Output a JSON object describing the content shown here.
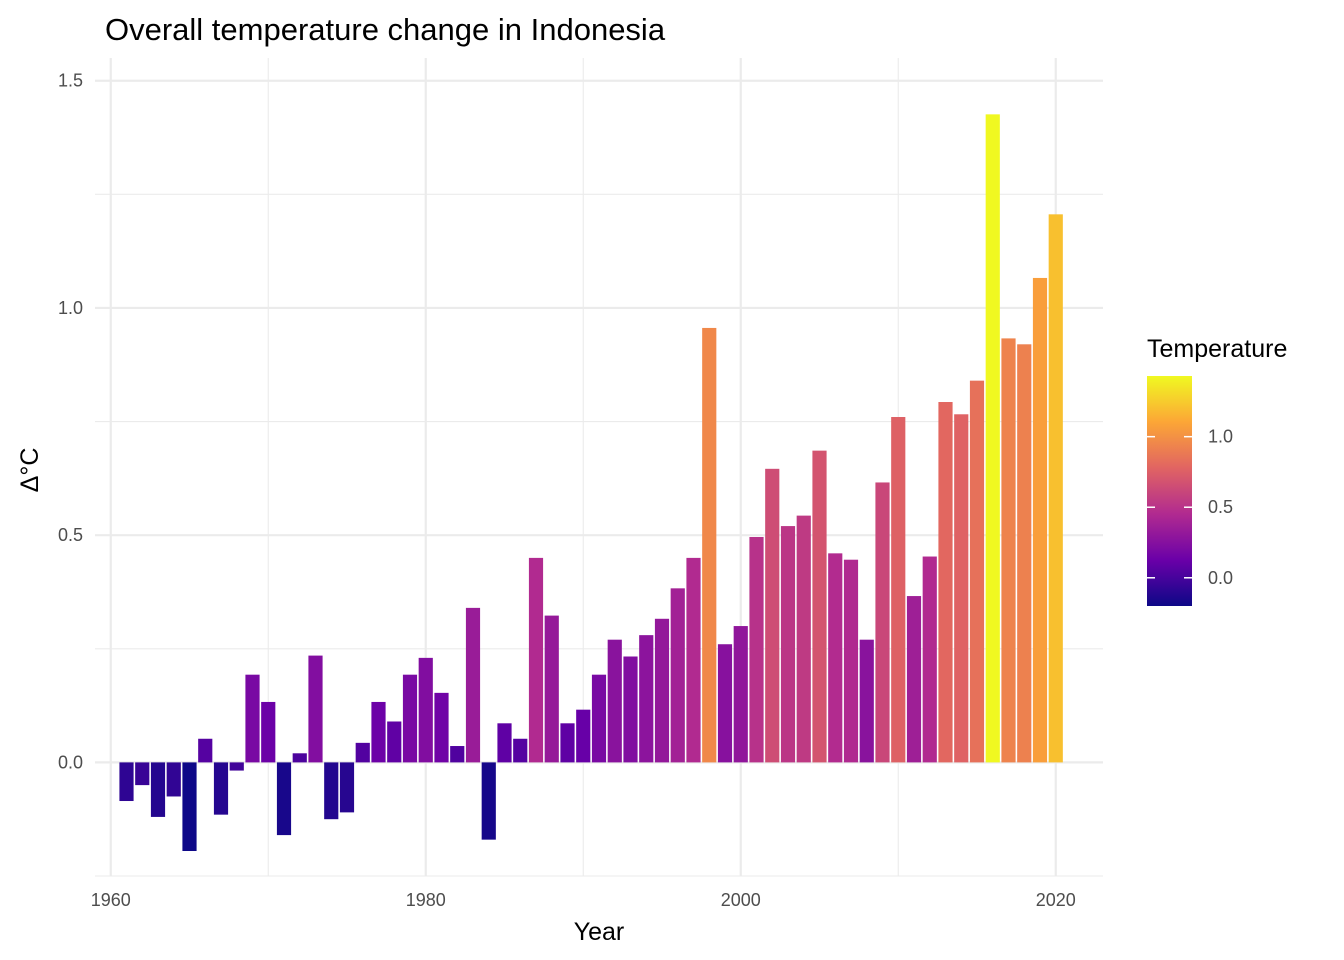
{
  "chart_data": {
    "type": "bar",
    "title": "Overall temperature change in Indonesia",
    "xlabel": "Year",
    "ylabel": "Δ°C",
    "xlim": [
      1959,
      2023
    ],
    "ylim": [
      -0.25,
      1.55
    ],
    "x_ticks": [
      "1960",
      "1980",
      "2000",
      "2020"
    ],
    "y_ticks": [
      "0.0",
      "0.5",
      "1.0",
      "1.5"
    ],
    "grid": true,
    "legend": {
      "title": "Temperature",
      "placement": "right",
      "ticks": [
        "0.0",
        "0.5",
        "1.0"
      ],
      "palette": [
        "#0d0887",
        "#6a00a8",
        "#b12a90",
        "#e16462",
        "#fca636",
        "#f0f921"
      ],
      "range": [
        -0.2,
        1.43
      ]
    },
    "x": [
      1961,
      1962,
      1963,
      1964,
      1965,
      1966,
      1967,
      1968,
      1969,
      1970,
      1971,
      1972,
      1973,
      1974,
      1975,
      1976,
      1977,
      1978,
      1979,
      1980,
      1981,
      1982,
      1983,
      1984,
      1985,
      1986,
      1987,
      1988,
      1989,
      1990,
      1991,
      1992,
      1993,
      1994,
      1995,
      1996,
      1997,
      1998,
      1999,
      2000,
      2001,
      2002,
      2003,
      2004,
      2005,
      2006,
      2007,
      2008,
      2009,
      2010,
      2011,
      2012,
      2013,
      2014,
      2015,
      2016,
      2017,
      2018,
      2019,
      2020
    ],
    "values": [
      -0.085,
      -0.05,
      -0.12,
      -0.075,
      -0.195,
      0.052,
      -0.115,
      -0.018,
      0.193,
      0.133,
      -0.16,
      0.02,
      0.235,
      -0.125,
      -0.11,
      0.043,
      0.133,
      0.09,
      0.193,
      0.23,
      0.153,
      0.036,
      0.34,
      -0.17,
      0.086,
      0.052,
      0.45,
      0.323,
      0.086,
      0.116,
      0.193,
      0.27,
      0.233,
      0.28,
      0.316,
      0.383,
      0.45,
      0.956,
      0.26,
      0.3,
      0.496,
      0.646,
      0.52,
      0.543,
      0.686,
      0.46,
      0.446,
      0.27,
      0.616,
      0.76,
      0.366,
      0.453,
      0.793,
      0.766,
      0.84,
      1.426,
      0.933,
      0.92,
      1.066,
      1.206
    ]
  }
}
